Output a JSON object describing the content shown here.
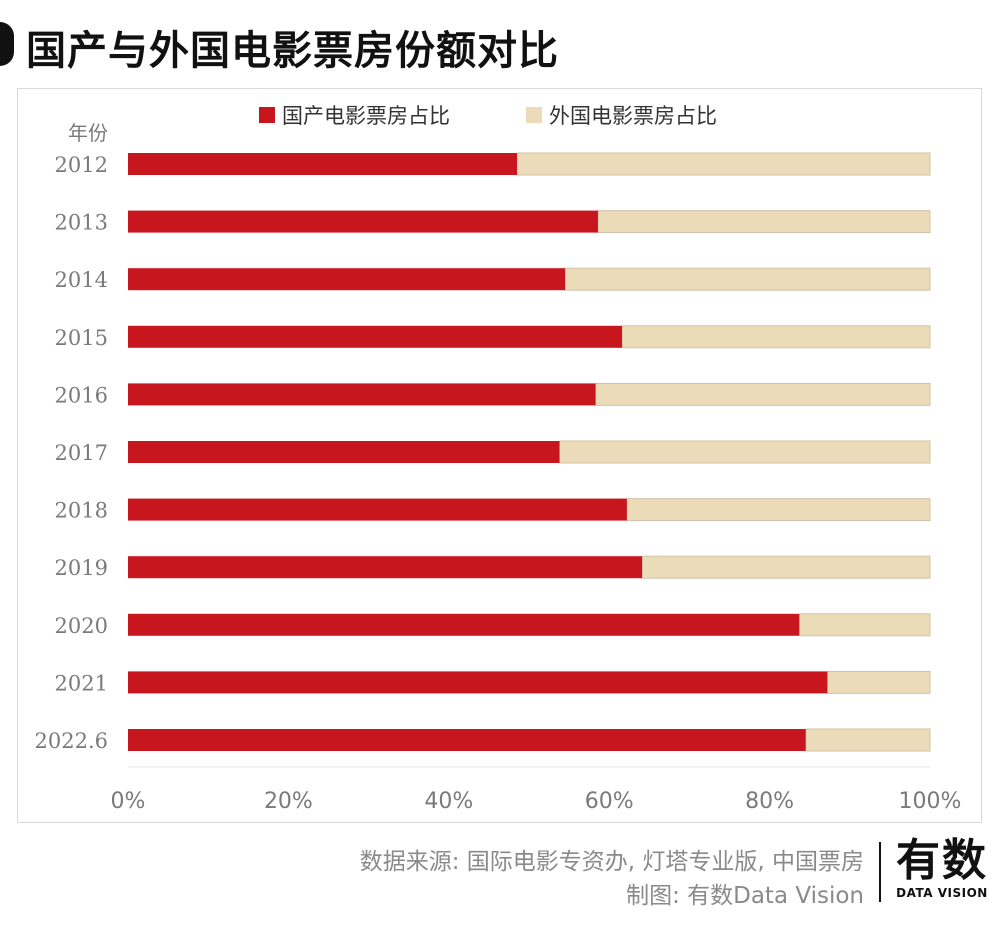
{
  "title": "国产与外国电影票房份额对比",
  "colors": {
    "domestic": "#c8161e",
    "foreign": "#ecdbb9",
    "bar_border": "#cfc3a6",
    "grid": "#e6e6e6",
    "axis_text": "#7a7a7a"
  },
  "chart_data": {
    "type": "bar",
    "orientation": "horizontal",
    "stacked": true,
    "yaxis_header": "年份",
    "categories": [
      "2012",
      "2013",
      "2014",
      "2015",
      "2016",
      "2017",
      "2018",
      "2019",
      "2020",
      "2021",
      "2022.6"
    ],
    "series": [
      {
        "name": "国产电影票房占比",
        "values": [
          48.5,
          58.6,
          54.5,
          61.6,
          58.3,
          53.8,
          62.2,
          64.1,
          83.7,
          87.2,
          84.5
        ]
      },
      {
        "name": "外国电影票房占比",
        "values": [
          51.5,
          41.4,
          45.5,
          38.4,
          41.7,
          46.2,
          37.8,
          35.9,
          16.3,
          12.8,
          15.5
        ]
      }
    ],
    "xticks": [
      "0%",
      "20%",
      "40%",
      "60%",
      "80%",
      "100%"
    ],
    "xlim": [
      0,
      100
    ],
    "legend_position": "top-center",
    "grid": false
  },
  "footer": {
    "source": "数据来源: 国际电影专资办, 灯塔专业版, 中国票房",
    "credit": "制图: 有数Data Vision",
    "logo_big": "有数",
    "logo_small": "DATA VISION"
  }
}
